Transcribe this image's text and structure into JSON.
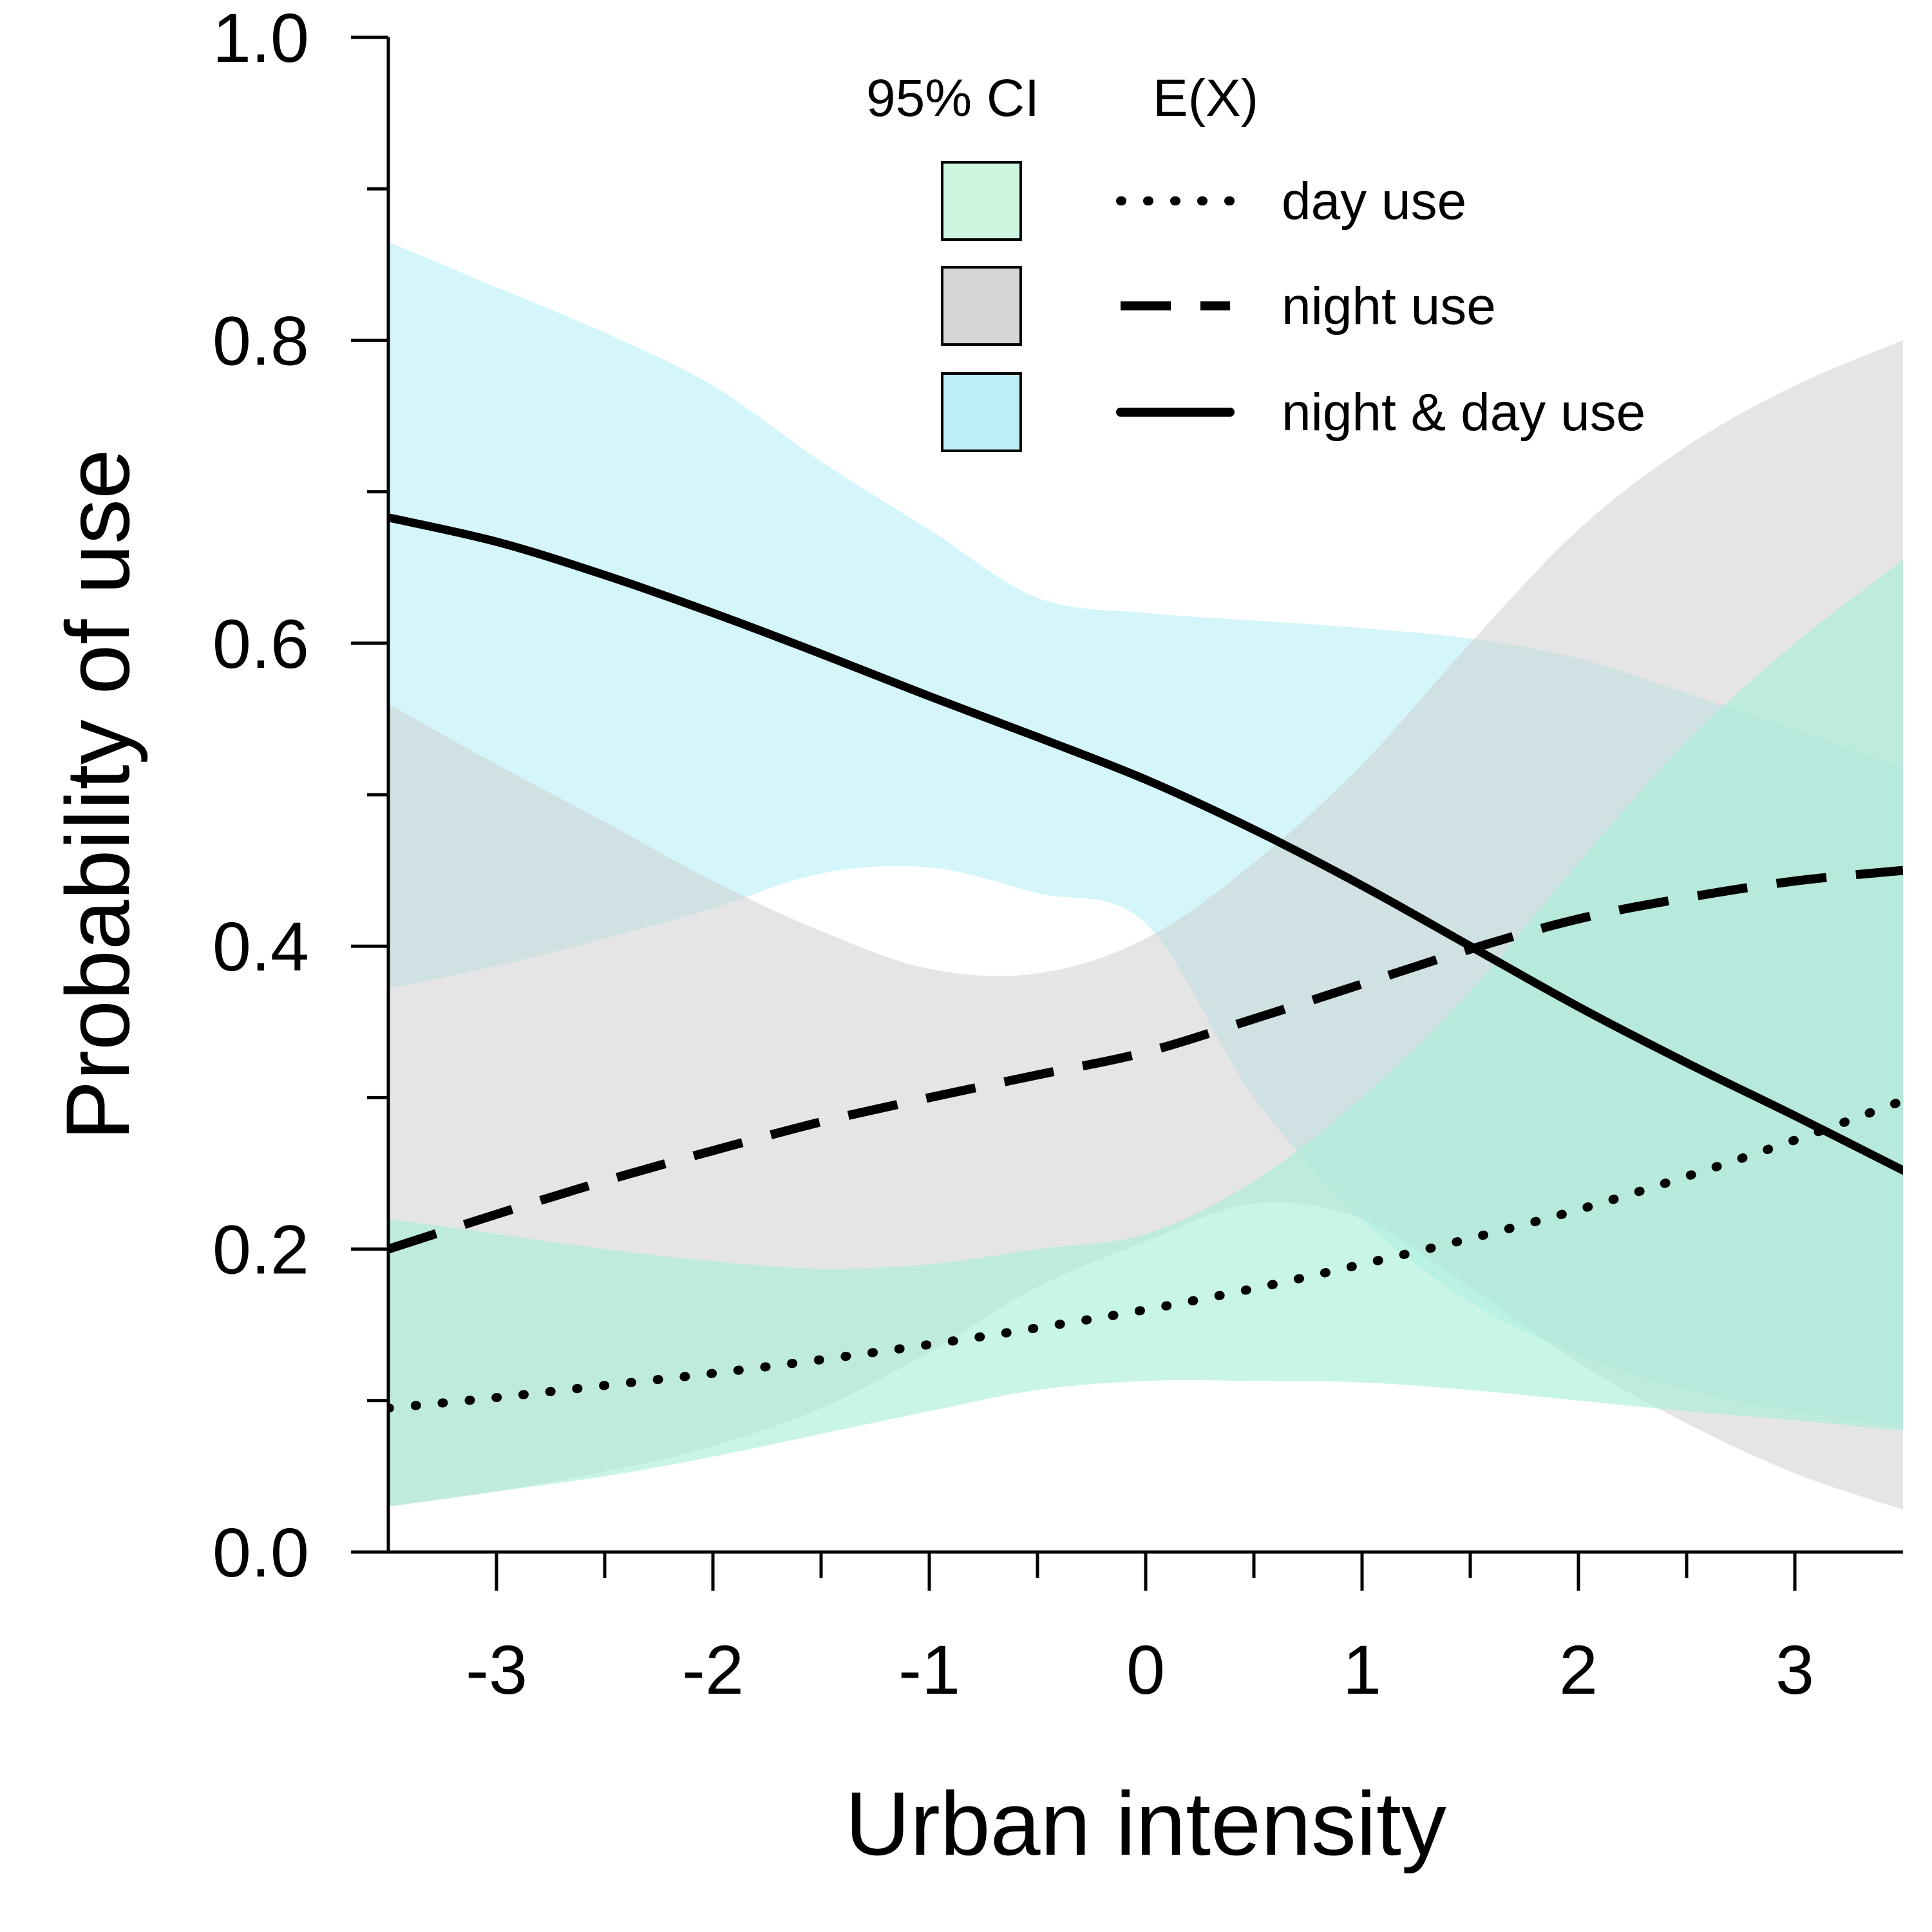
{
  "chart_data": {
    "type": "line",
    "title": "",
    "xlabel": "Urban intensity",
    "ylabel": "Probability of use",
    "xlim": [
      -3.5,
      3.5
    ],
    "ylim": [
      0.0,
      1.0
    ],
    "x_ticks": [
      -3,
      -2,
      -1,
      0,
      1,
      2,
      3
    ],
    "x_tick_labels": [
      "-3",
      "-2",
      "-1",
      "0",
      "1",
      "2",
      "3"
    ],
    "x_minor_ticks": [
      -2.5,
      -1.5,
      -0.5,
      0.5,
      1.5,
      2.5
    ],
    "y_ticks": [
      0.0,
      0.2,
      0.4,
      0.6,
      0.8,
      1.0
    ],
    "y_tick_labels": [
      "0.0",
      "0.2",
      "0.4",
      "0.6",
      "0.8",
      "1.0"
    ],
    "y_minor_ticks": [
      0.1,
      0.3,
      0.5,
      0.7,
      0.9
    ],
    "grid": false,
    "legend": {
      "placement": "top-right",
      "ci_header": "95% CI",
      "line_header": "E(X)"
    },
    "series": [
      {
        "name": "day use",
        "line_style": "dotted",
        "ci_color": "#a8efd9",
        "ci_swatch_color": "#cdf5df",
        "x": [
          -3.5,
          -3.0,
          -2.5,
          -2.0,
          -1.5,
          -1.0,
          -0.5,
          0.0,
          0.5,
          1.0,
          1.5,
          2.0,
          2.5,
          3.0,
          3.5
        ],
        "values": [
          0.095,
          0.102,
          0.11,
          0.118,
          0.127,
          0.137,
          0.148,
          0.16,
          0.174,
          0.19,
          0.207,
          0.226,
          0.248,
          0.272,
          0.298
        ],
        "ci_lower": [
          0.03,
          0.04,
          0.05,
          0.063,
          0.078,
          0.093,
          0.107,
          0.113,
          0.113,
          0.112,
          0.107,
          0.1,
          0.093,
          0.087,
          0.08
        ],
        "ci_upper": [
          0.22,
          0.21,
          0.2,
          0.192,
          0.187,
          0.19,
          0.2,
          0.21,
          0.245,
          0.3,
          0.37,
          0.455,
          0.535,
          0.6,
          0.655
        ]
      },
      {
        "name": "night use",
        "line_style": "dashed",
        "ci_color": "#cccccc",
        "ci_swatch_color": "#d6d6d6",
        "x": [
          -3.5,
          -3.0,
          -2.5,
          -2.0,
          -1.5,
          -1.0,
          -0.5,
          0.0,
          0.5,
          1.0,
          1.5,
          2.0,
          2.5,
          3.0,
          3.5
        ],
        "values": [
          0.2,
          0.223,
          0.245,
          0.265,
          0.284,
          0.3,
          0.315,
          0.33,
          0.352,
          0.375,
          0.398,
          0.418,
          0.432,
          0.443,
          0.45
        ],
        "ci_lower": [
          0.03,
          0.04,
          0.053,
          0.07,
          0.095,
          0.132,
          0.175,
          0.205,
          0.23,
          0.22,
          0.175,
          0.125,
          0.085,
          0.052,
          0.028
        ],
        "ci_upper": [
          0.56,
          0.52,
          0.482,
          0.443,
          0.41,
          0.385,
          0.382,
          0.405,
          0.455,
          0.52,
          0.6,
          0.675,
          0.73,
          0.77,
          0.8
        ]
      },
      {
        "name": "night & day use",
        "line_style": "solid",
        "ci_color": "#a9edf6",
        "ci_swatch_color": "#bdeef8",
        "x": [
          -3.5,
          -3.0,
          -2.5,
          -2.0,
          -1.5,
          -1.0,
          -0.5,
          0.0,
          0.5,
          1.0,
          1.5,
          2.0,
          2.5,
          3.0,
          3.5
        ],
        "values": [
          0.683,
          0.667,
          0.645,
          0.62,
          0.593,
          0.565,
          0.538,
          0.51,
          0.477,
          0.44,
          0.4,
          0.36,
          0.323,
          0.288,
          0.252
        ],
        "ci_lower": [
          0.372,
          0.387,
          0.405,
          0.425,
          0.448,
          0.452,
          0.435,
          0.415,
          0.3,
          0.22,
          0.165,
          0.13,
          0.107,
          0.093,
          0.082
        ],
        "ci_upper": [
          0.865,
          0.835,
          0.805,
          0.77,
          0.72,
          0.675,
          0.63,
          0.62,
          0.615,
          0.61,
          0.603,
          0.59,
          0.567,
          0.543,
          0.518
        ]
      }
    ]
  }
}
